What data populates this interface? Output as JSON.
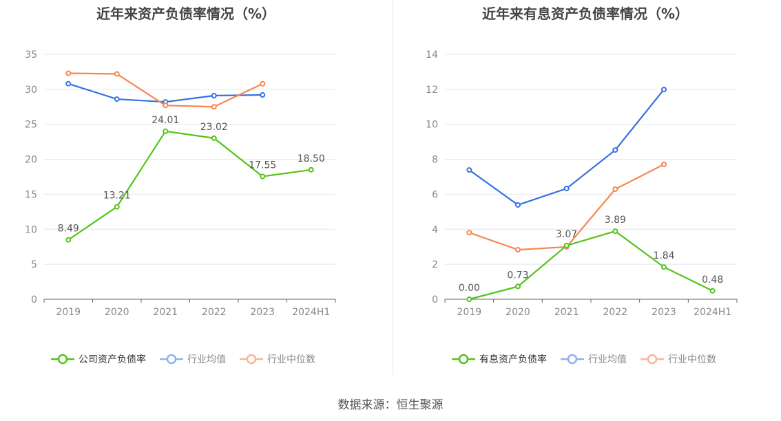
{
  "source": "数据来源：恒生聚源",
  "chart_data": [
    {
      "type": "line",
      "title": "近年来资产负债率情况（%）",
      "categories": [
        "2019",
        "2020",
        "2021",
        "2022",
        "2023",
        "2024H1"
      ],
      "ylim": [
        0,
        35
      ],
      "yticks": [
        0,
        5,
        10,
        15,
        20,
        25,
        30,
        35
      ],
      "grid": true,
      "legend": "bottom",
      "series": [
        {
          "name": "公司资产负债率",
          "color": "#52c41a",
          "values": [
            8.49,
            13.21,
            24.01,
            23.02,
            17.55,
            18.5
          ],
          "labels": [
            "8.49",
            "13.21",
            "24.01",
            "23.02",
            "17.55",
            "18.50"
          ]
        },
        {
          "name": "行业均值",
          "color": "#3470e6",
          "values": [
            30.8,
            28.6,
            28.2,
            29.1,
            29.2,
            null
          ]
        },
        {
          "name": "行业中位数",
          "color": "#f6864e",
          "values": [
            32.3,
            32.2,
            27.7,
            27.5,
            30.8,
            null
          ]
        }
      ]
    },
    {
      "type": "line",
      "title": "近年来有息资产负债率情况（%）",
      "categories": [
        "2019",
        "2020",
        "2021",
        "2022",
        "2023",
        "2024H1"
      ],
      "ylim": [
        0,
        14
      ],
      "yticks": [
        0,
        2,
        4,
        6,
        8,
        10,
        12,
        14
      ],
      "grid": true,
      "legend": "bottom",
      "series": [
        {
          "name": "有息资产负债率",
          "color": "#52c41a",
          "values": [
            0.0,
            0.73,
            3.07,
            3.89,
            1.84,
            0.48
          ],
          "labels": [
            "0.00",
            "0.73",
            "3.07",
            "3.89",
            "1.84",
            "0.48"
          ]
        },
        {
          "name": "行业均值",
          "color": "#3470e6",
          "values": [
            7.39,
            5.39,
            6.33,
            8.53,
            11.99,
            null
          ]
        },
        {
          "name": "行业中位数",
          "color": "#f6864e",
          "values": [
            3.81,
            2.83,
            2.99,
            6.29,
            7.71,
            null
          ]
        }
      ]
    }
  ]
}
